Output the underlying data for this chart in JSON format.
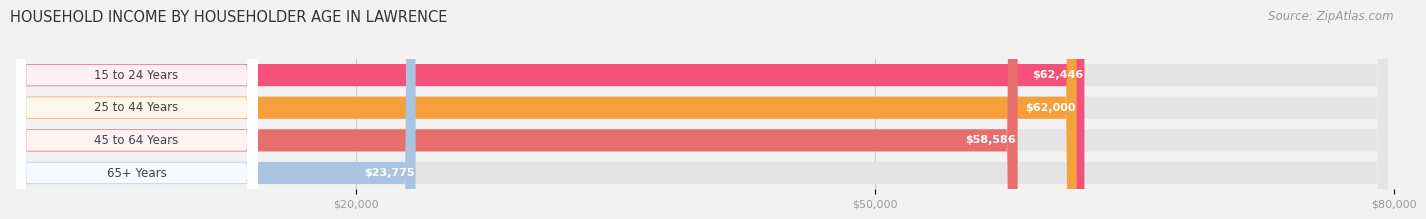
{
  "title": "HOUSEHOLD INCOME BY HOUSEHOLDER AGE IN LAWRENCE",
  "source": "Source: ZipAtlas.com",
  "categories": [
    "15 to 24 Years",
    "25 to 44 Years",
    "45 to 64 Years",
    "65+ Years"
  ],
  "values": [
    62446,
    62000,
    58586,
    23775
  ],
  "bar_colors": [
    "#f4507a",
    "#f5a03a",
    "#e86e6e",
    "#a8c4e0"
  ],
  "value_labels": [
    "$62,446",
    "$62,000",
    "$58,586",
    "$23,775"
  ],
  "xlim": [
    0,
    80000
  ],
  "xticks": [
    20000,
    50000,
    80000
  ],
  "xtick_labels": [
    "$20,000",
    "$50,000",
    "$80,000"
  ],
  "background_color": "#f2f2f2",
  "bar_background_color": "#e4e4e4",
  "title_fontsize": 10.5,
  "source_fontsize": 8.5,
  "label_fontsize": 8.5,
  "value_fontsize": 8,
  "bar_height": 0.68,
  "bar_label_color": "#ffffff",
  "category_label_color": "#444444",
  "grid_color": "#cccccc",
  "white_badge_color": "#ffffff"
}
